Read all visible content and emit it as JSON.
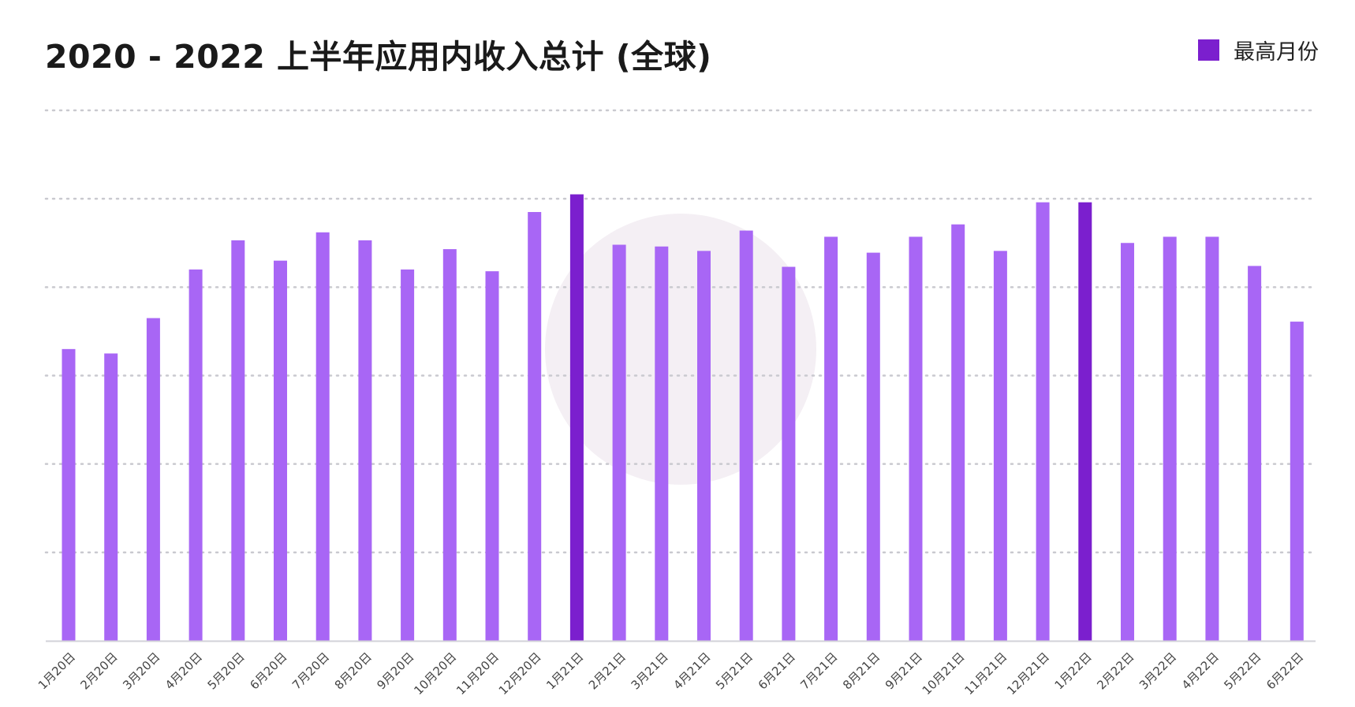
{
  "colors": {
    "bar": "#a866f5",
    "bar_highlight": "#7b1fce",
    "grid": "#c9c9cf",
    "axis": "#d2d2d8",
    "tick_text": "#444444",
    "watermark": "#f4eff4"
  },
  "legend": {
    "label": "最高月份"
  },
  "chart_data": {
    "type": "bar",
    "title": "2020 - 2022 上半年应用内收入总计 (全球)",
    "xlabel": "",
    "ylabel": "",
    "categories": [
      "1月20日",
      "2月20日",
      "3月20日",
      "4月20日",
      "5月20日",
      "6月20日",
      "7月20日",
      "8月20日",
      "9月20日",
      "10月20日",
      "11月20日",
      "12月20日",
      "1月21日",
      "2月21日",
      "3月21日",
      "4月21日",
      "5月21日",
      "6月21日",
      "7月21日",
      "8月21日",
      "9月21日",
      "10月21日",
      "11月21日",
      "12月21日",
      "1月22日",
      "2月22日",
      "3月22日",
      "4月22日",
      "5月22日",
      "6月22日"
    ],
    "values": [
      3.3,
      3.25,
      3.65,
      4.2,
      4.53,
      4.3,
      4.62,
      4.53,
      4.2,
      4.43,
      4.18,
      4.85,
      5.05,
      4.48,
      4.46,
      4.41,
      4.64,
      4.23,
      4.57,
      4.39,
      4.57,
      4.71,
      4.41,
      4.96,
      4.96,
      4.5,
      4.57,
      4.57,
      4.24,
      3.61
    ],
    "highlight": [
      12,
      24
    ],
    "legend": [
      "最高月份"
    ],
    "legend_position": "top-right",
    "grid": true,
    "ylim": [
      0,
      6
    ],
    "yticks": [
      1,
      2,
      3,
      4,
      5,
      6
    ],
    "show_y_labels": false
  }
}
